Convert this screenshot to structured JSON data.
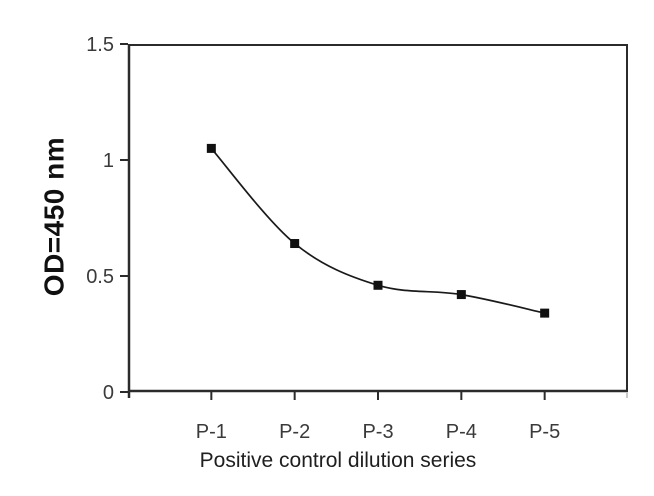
{
  "figure": {
    "background": "#ffffff"
  },
  "chart_data": {
    "type": "line",
    "smoothed": true,
    "xlabel": "Positive control dilution series",
    "ylabel": "OD=450 nm",
    "categories": [
      "P-1",
      "P-2",
      "P-3",
      "P-4",
      "P-5"
    ],
    "values": [
      1.05,
      0.64,
      0.46,
      0.42,
      0.34
    ],
    "ylim": [
      0,
      1.5
    ],
    "yticks": [
      0,
      0.5,
      1,
      1.5
    ],
    "ytick_labels": [
      "0",
      "0.5",
      "1",
      "1.5"
    ],
    "grid": false,
    "legend_position": "none",
    "marker": "filled-square",
    "marker_size_px": 9,
    "line_color": "#1a1a1a",
    "marker_color": "#111111",
    "axis_color": "#2b2b2b",
    "tick_label_color": "#3a3a3a",
    "axis_title_color": "#1f1f1f"
  }
}
